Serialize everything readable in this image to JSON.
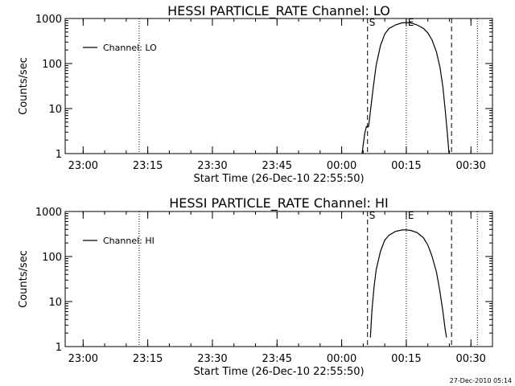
{
  "timestamp": "27-Dec-2010 05:14",
  "chart_data": [
    {
      "type": "line",
      "title": "HESSI PARTICLE_RATE Channel: LO",
      "xlabel": "Start Time (26-Dec-10 22:55:50)",
      "ylabel": "Counts/sec",
      "yscale": "log",
      "ylim": [
        1,
        1000
      ],
      "xlim": [
        "22:55:50",
        "00:35:00"
      ],
      "xticks": [
        "23:00",
        "23:15",
        "23:30",
        "23:45",
        "00:00",
        "00:15",
        "00:30"
      ],
      "yticks": [
        "1",
        "10",
        "100",
        "1000"
      ],
      "legend": {
        "label": "Channel: LO",
        "placement": "top-left"
      },
      "markers": [
        {
          "label": "S",
          "style": "dashed",
          "time": "00:06:00"
        },
        {
          "label": "E",
          "style": "dotted",
          "time": "00:15:00"
        }
      ],
      "vlines": [
        {
          "style": "dotted",
          "time": "23:13:00"
        },
        {
          "style": "dashed",
          "time": "00:25:30"
        },
        {
          "style": "dotted",
          "time": "00:31:30"
        }
      ],
      "series": [
        {
          "name": "Channel: LO",
          "x": [
            "00:04:45",
            "00:05:05",
            "00:05:25",
            "00:05:45",
            "00:06:15",
            "00:06:45",
            "00:07:20",
            "00:08:00",
            "00:09:00",
            "00:10:00",
            "00:11:00",
            "00:12:30",
            "00:14:00",
            "00:15:00",
            "00:16:00",
            "00:17:30",
            "00:19:00",
            "00:20:00",
            "00:21:00",
            "00:22:00",
            "00:22:50",
            "00:23:30",
            "00:24:00",
            "00:24:30",
            "00:24:55"
          ],
          "y": [
            1,
            1.8,
            3,
            4,
            4,
            10,
            30,
            90,
            250,
            450,
            600,
            720,
            800,
            810,
            800,
            720,
            600,
            480,
            330,
            180,
            80,
            30,
            10,
            3,
            1
          ]
        }
      ]
    },
    {
      "type": "line",
      "title": "HESSI PARTICLE_RATE Channel: HI",
      "xlabel": "Start Time (26-Dec-10 22:55:50)",
      "ylabel": "Counts/sec",
      "yscale": "log",
      "ylim": [
        1,
        1000
      ],
      "xlim": [
        "22:55:50",
        "00:35:00"
      ],
      "xticks": [
        "23:00",
        "23:15",
        "23:30",
        "23:45",
        "00:00",
        "00:15",
        "00:30"
      ],
      "yticks": [
        "1",
        "10",
        "100",
        "1000"
      ],
      "legend": {
        "label": "Channel: HI",
        "placement": "top-left"
      },
      "markers": [
        {
          "label": "S",
          "style": "dashed",
          "time": "00:06:00"
        },
        {
          "label": "E",
          "style": "dotted",
          "time": "00:15:00"
        }
      ],
      "vlines": [
        {
          "style": "dotted",
          "time": "23:13:00"
        },
        {
          "style": "dashed",
          "time": "00:25:30"
        },
        {
          "style": "dotted",
          "time": "00:31:30"
        }
      ],
      "series": [
        {
          "name": "Channel: HI",
          "x": [
            "00:06:40",
            "00:07:00",
            "00:07:30",
            "00:08:00",
            "00:09:00",
            "00:10:00",
            "00:11:00",
            "00:12:30",
            "00:14:00",
            "00:15:00",
            "00:16:00",
            "00:17:30",
            "00:19:00",
            "00:20:00",
            "00:21:00",
            "00:22:00",
            "00:22:45",
            "00:23:30",
            "00:24:00",
            "00:24:20"
          ],
          "y": [
            1.6,
            6,
            20,
            50,
            130,
            230,
            300,
            360,
            390,
            390,
            380,
            340,
            260,
            180,
            100,
            45,
            18,
            6,
            2.5,
            1.6
          ]
        }
      ]
    }
  ]
}
